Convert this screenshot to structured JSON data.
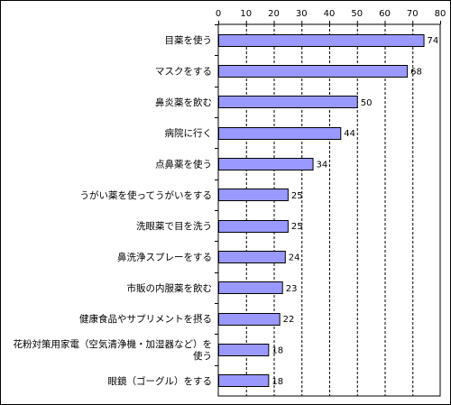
{
  "chart_data": {
    "type": "bar",
    "orientation": "horizontal",
    "categories": [
      "目薬を使う",
      "マスクをする",
      "鼻炎薬を飲む",
      "病院に行く",
      "点鼻薬を使う",
      "うがい薬を使ってうがいをする",
      "洗眼薬で目を洗う",
      "鼻洗浄スプレーをする",
      "市販の内服薬を飲む",
      "健康食品やサプリメントを摂る",
      [
        "花粉対策用家電（空気清浄機・加湿器など）を",
        "使う"
      ],
      "眼鏡（ゴーグル）をする"
    ],
    "values": [
      74,
      68,
      50,
      44,
      34,
      25,
      25,
      24,
      23,
      22,
      18,
      18
    ],
    "xlim": [
      0,
      80
    ],
    "ticks": [
      "0",
      "10",
      "20",
      "30",
      "40",
      "50",
      "60",
      "70",
      "80"
    ],
    "bar_color": "#9999ff",
    "bar_border": "#000000",
    "grid": "vertical dashed",
    "axis_position": "top"
  }
}
